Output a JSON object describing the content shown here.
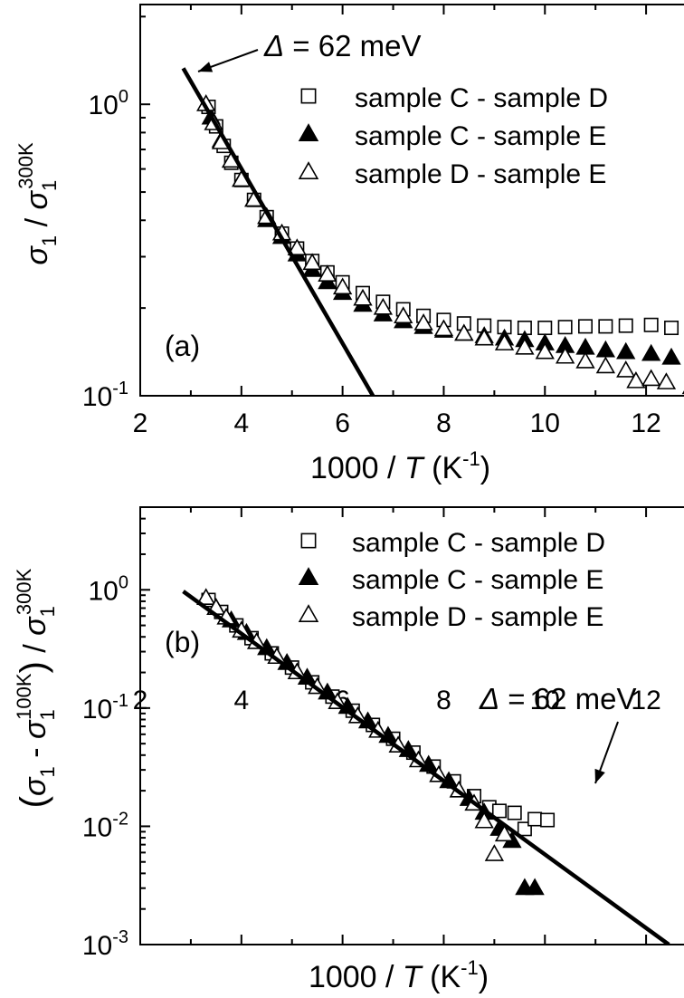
{
  "chart_data": [
    {
      "type": "scatter",
      "panel_label": "(a)",
      "xlabel": {
        "text": "1000 / ",
        "italic": "T",
        "unit": " (K",
        "sup": "-1",
        "close": ")"
      },
      "ylabel": {
        "sigma": "σ",
        "sub": "1",
        "slash": " / ",
        "sigma2": "σ",
        "sub2": "1",
        "sup2": "300K"
      },
      "xlim": [
        2,
        13
      ],
      "ylim": [
        0.1,
        2.2
      ],
      "yscale": "log",
      "xticks": [
        2,
        4,
        6,
        8,
        10,
        12
      ],
      "yticks": [
        {
          "value": 1,
          "base": "10",
          "exp": "0"
        },
        {
          "value": 0.1,
          "base": "10",
          "exp": "-1"
        }
      ],
      "annotation": {
        "delta": "Δ",
        "text": " = 62 meV"
      },
      "legend": {
        "placement": "top-right",
        "entries": [
          {
            "label": "sample C - sample D",
            "marker": "open-square"
          },
          {
            "label": "sample C - sample E",
            "marker": "filled-triangle"
          },
          {
            "label": "sample D - sample E",
            "marker": "open-triangle"
          }
        ]
      },
      "fit_line": {
        "name": "Δ = 62 meV",
        "x": [
          2.85,
          6.6
        ],
        "y": [
          1.33,
          0.1
        ]
      },
      "series": [
        {
          "name": "sample C - sample D",
          "marker": "open-square",
          "color": "#000000",
          "x": [
            3.35,
            3.5,
            3.65,
            3.8,
            4.0,
            4.25,
            4.5,
            4.8,
            5.1,
            5.4,
            5.7,
            6.0,
            6.4,
            6.8,
            7.2,
            7.6,
            8.0,
            8.4,
            8.8,
            9.2,
            9.6,
            10.0,
            10.4,
            10.8,
            11.2,
            11.6,
            12.1,
            12.5
          ],
          "y": [
            0.98,
            0.84,
            0.72,
            0.63,
            0.55,
            0.47,
            0.41,
            0.36,
            0.32,
            0.29,
            0.265,
            0.245,
            0.225,
            0.21,
            0.198,
            0.188,
            0.182,
            0.177,
            0.174,
            0.172,
            0.171,
            0.171,
            0.172,
            0.173,
            0.173,
            0.174,
            0.175,
            0.171
          ]
        },
        {
          "name": "sample C - sample E",
          "marker": "filled-triangle",
          "color": "#000000",
          "x": [
            3.4,
            3.6,
            3.8,
            4.0,
            4.25,
            4.5,
            4.8,
            5.1,
            5.4,
            5.7,
            6.0,
            6.4,
            6.8,
            7.2,
            7.6,
            8.0,
            8.4,
            8.8,
            9.2,
            9.6,
            10.0,
            10.4,
            10.8,
            11.2,
            11.6,
            12.1,
            12.5
          ],
          "y": [
            0.9,
            0.75,
            0.64,
            0.55,
            0.47,
            0.4,
            0.35,
            0.305,
            0.27,
            0.245,
            0.225,
            0.205,
            0.19,
            0.18,
            0.172,
            0.167,
            0.163,
            0.16,
            0.157,
            0.155,
            0.151,
            0.148,
            0.146,
            0.143,
            0.141,
            0.139,
            0.135
          ]
        },
        {
          "name": "sample D - sample E",
          "marker": "open-triangle",
          "color": "#000000",
          "x": [
            3.3,
            3.45,
            3.6,
            3.8,
            4.0,
            4.25,
            4.5,
            4.8,
            5.1,
            5.4,
            5.7,
            6.0,
            6.4,
            6.8,
            7.2,
            7.6,
            8.0,
            8.4,
            8.8,
            9.2,
            9.6,
            10.0,
            10.4,
            10.8,
            11.2,
            11.6,
            11.8,
            12.1,
            12.4,
            12.9
          ],
          "y": [
            1.0,
            0.86,
            0.74,
            0.64,
            0.55,
            0.47,
            0.41,
            0.36,
            0.32,
            0.285,
            0.26,
            0.235,
            0.215,
            0.2,
            0.187,
            0.177,
            0.169,
            0.163,
            0.157,
            0.151,
            0.146,
            0.141,
            0.136,
            0.131,
            0.126,
            0.122,
            0.112,
            0.114,
            0.111,
            0.107
          ]
        }
      ]
    },
    {
      "type": "scatter",
      "panel_label": "(b)",
      "xlabel": {
        "text": "1000 / ",
        "italic": "T",
        "unit": " (K",
        "sup": "-1",
        "close": ")"
      },
      "ylabel": {
        "open": "(",
        "sigma": "σ",
        "sub": "1",
        "minus": " - ",
        "sigma2": "σ",
        "sub2": "1",
        "sup2": "100K",
        "close": ")",
        "slash": " / ",
        "sigma3": "σ",
        "sub3": "1",
        "sup3": "300K"
      },
      "xlim": [
        2,
        13
      ],
      "ylim": [
        0.001,
        5
      ],
      "yscale": "log",
      "xticks": [
        2,
        4,
        6,
        8,
        10,
        12
      ],
      "yticks": [
        {
          "value": 1,
          "base": "10",
          "exp": "0"
        },
        {
          "value": 0.1,
          "base": "10",
          "exp": "-1"
        },
        {
          "value": 0.01,
          "base": "10",
          "exp": "-2"
        },
        {
          "value": 0.001,
          "base": "10",
          "exp": "-3"
        }
      ],
      "annotation": {
        "delta": "Δ",
        "text": " = 62 meV"
      },
      "legend": {
        "placement": "top-right",
        "entries": [
          {
            "label": "sample C - sample D",
            "marker": "open-square"
          },
          {
            "label": "sample C - sample E",
            "marker": "filled-triangle"
          },
          {
            "label": "sample D - sample E",
            "marker": "open-triangle"
          }
        ]
      },
      "fit_line": {
        "name": "Δ = 62 meV",
        "x": [
          2.85,
          12.45
        ],
        "y": [
          0.97,
          0.001
        ]
      },
      "series": [
        {
          "name": "sample C - sample D",
          "marker": "open-square",
          "color": "#000000",
          "x": [
            3.35,
            3.6,
            3.9,
            4.2,
            4.6,
            5.0,
            5.4,
            5.8,
            6.2,
            6.6,
            7.0,
            7.4,
            7.8,
            8.2,
            8.6,
            8.9,
            9.1,
            9.4,
            9.6,
            9.8,
            10.05
          ],
          "y": [
            0.82,
            0.65,
            0.5,
            0.39,
            0.29,
            0.22,
            0.165,
            0.125,
            0.095,
            0.072,
            0.055,
            0.042,
            0.032,
            0.024,
            0.018,
            0.0145,
            0.0135,
            0.013,
            0.0095,
            0.0115,
            0.0113
          ]
        },
        {
          "name": "sample C - sample E",
          "marker": "filled-triangle",
          "color": "#000000",
          "x": [
            3.5,
            3.8,
            4.1,
            4.5,
            4.9,
            5.3,
            5.7,
            6.1,
            6.5,
            6.9,
            7.3,
            7.7,
            8.1,
            8.5,
            8.8,
            9.1,
            9.35,
            9.6,
            9.8
          ],
          "y": [
            0.7,
            0.55,
            0.43,
            0.32,
            0.24,
            0.18,
            0.135,
            0.102,
            0.077,
            0.058,
            0.044,
            0.033,
            0.024,
            0.017,
            0.013,
            0.0095,
            0.0075,
            0.003,
            0.003
          ]
        },
        {
          "name": "sample D - sample E",
          "marker": "open-triangle",
          "color": "#000000",
          "x": [
            3.3,
            3.5,
            3.7,
            4.0,
            4.3,
            4.7,
            5.1,
            5.5,
            5.9,
            6.3,
            6.7,
            7.1,
            7.5,
            7.9,
            8.3,
            8.6,
            8.8,
            9.0,
            9.2
          ],
          "y": [
            0.85,
            0.7,
            0.58,
            0.45,
            0.36,
            0.27,
            0.2,
            0.15,
            0.112,
            0.085,
            0.064,
            0.048,
            0.036,
            0.027,
            0.02,
            0.0155,
            0.011,
            0.0058,
            0.0085
          ]
        }
      ]
    }
  ]
}
